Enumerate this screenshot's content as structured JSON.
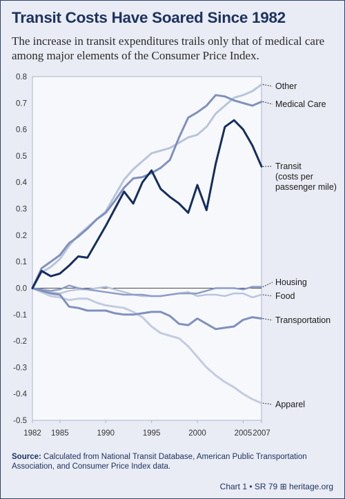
{
  "chart_data": {
    "type": "line",
    "title": "Transit Costs Have Soared Since 1982",
    "subtitle": "The increase in transit expenditures trails only that of medical care among major elements of the Consumer Price Index.",
    "xlabel": "",
    "ylabel": "",
    "xlim": [
      1982,
      2007
    ],
    "ylim": [
      -0.5,
      0.8
    ],
    "x_ticks": [
      "1982",
      "1985",
      "1990",
      "1995",
      "2000",
      "2005",
      "2007"
    ],
    "y_ticks": [
      "0.8",
      "0.7",
      "0.6",
      "0.5",
      "0.4",
      "0.3",
      "0.2",
      "0.1",
      "0.0",
      "-0.1",
      "-0.2",
      "-0.3",
      "-0.4",
      "-0.5"
    ],
    "x": [
      1982,
      1983,
      1984,
      1985,
      1986,
      1987,
      1988,
      1989,
      1990,
      1991,
      1992,
      1993,
      1994,
      1995,
      1996,
      1997,
      1998,
      1999,
      2000,
      2001,
      2002,
      2003,
      2004,
      2005,
      2006,
      2007
    ],
    "series": [
      {
        "name": "Other",
        "color": "#b9c4dc",
        "width": 3,
        "values": [
          0,
          0.06,
          0.08,
          0.11,
          0.16,
          0.2,
          0.23,
          0.26,
          0.29,
          0.35,
          0.41,
          0.45,
          0.48,
          0.51,
          0.52,
          0.53,
          0.55,
          0.57,
          0.58,
          0.61,
          0.66,
          0.69,
          0.72,
          0.73,
          0.745,
          0.77
        ]
      },
      {
        "name": "Medical Care",
        "color": "#7f90bd",
        "width": 3,
        "values": [
          0,
          0.075,
          0.1,
          0.125,
          0.17,
          0.195,
          0.225,
          0.26,
          0.285,
          0.33,
          0.38,
          0.415,
          0.42,
          0.435,
          0.455,
          0.485,
          0.57,
          0.645,
          0.665,
          0.69,
          0.73,
          0.725,
          0.71,
          0.7,
          0.69,
          0.705
        ]
      },
      {
        "name": "Transit (costs per passenger mile)",
        "color": "#142d5e",
        "width": 3,
        "values": [
          0,
          0.065,
          0.045,
          0.055,
          0.085,
          0.12,
          0.115,
          0.175,
          0.235,
          0.3,
          0.365,
          0.32,
          0.4,
          0.445,
          0.375,
          0.345,
          0.32,
          0.285,
          0.39,
          0.295,
          0.47,
          0.61,
          0.635,
          0.6,
          0.54,
          0.46
        ]
      },
      {
        "name": "Housing",
        "color": "#8e9dc6",
        "width": 2.5,
        "values": [
          0,
          -0.005,
          -0.01,
          -0.005,
          0.01,
          0.0,
          -0.005,
          -0.01,
          -0.015,
          -0.02,
          -0.025,
          -0.025,
          -0.025,
          -0.03,
          -0.03,
          -0.025,
          -0.02,
          -0.02,
          -0.02,
          -0.01,
          0.0,
          0.0,
          0.0,
          -0.005,
          0.005,
          0.005
        ]
      },
      {
        "name": "Food",
        "color": "#b9c4dc",
        "width": 2.5,
        "values": [
          0,
          -0.005,
          -0.015,
          -0.02,
          -0.01,
          -0.005,
          -0.005,
          0.0,
          0.005,
          -0.005,
          -0.015,
          -0.025,
          -0.03,
          -0.03,
          -0.03,
          -0.025,
          -0.02,
          -0.015,
          -0.03,
          -0.025,
          -0.025,
          -0.03,
          -0.02,
          -0.02,
          -0.035,
          -0.025
        ]
      },
      {
        "name": "Transportation",
        "color": "#7f90bd",
        "width": 3,
        "values": [
          0,
          -0.01,
          -0.02,
          -0.025,
          -0.07,
          -0.075,
          -0.085,
          -0.085,
          -0.085,
          -0.095,
          -0.1,
          -0.1,
          -0.095,
          -0.09,
          -0.09,
          -0.105,
          -0.135,
          -0.14,
          -0.115,
          -0.135,
          -0.155,
          -0.15,
          -0.145,
          -0.12,
          -0.11,
          -0.115
        ]
      },
      {
        "name": "Apparel",
        "color": "#c2cbe0",
        "width": 3,
        "values": [
          0,
          -0.015,
          -0.03,
          -0.035,
          -0.045,
          -0.04,
          -0.04,
          -0.055,
          -0.065,
          -0.07,
          -0.075,
          -0.09,
          -0.11,
          -0.145,
          -0.17,
          -0.18,
          -0.19,
          -0.22,
          -0.26,
          -0.3,
          -0.33,
          -0.355,
          -0.375,
          -0.4,
          -0.42,
          -0.435
        ]
      }
    ],
    "labels": [
      {
        "series": 0,
        "lines": [
          "Other"
        ]
      },
      {
        "series": 1,
        "lines": [
          "Medical Care"
        ]
      },
      {
        "series": 2,
        "lines": [
          "Transit",
          "(costs per",
          "passenger mile)"
        ]
      },
      {
        "series": 3,
        "lines": [
          "Housing"
        ]
      },
      {
        "series": 4,
        "lines": [
          "Food"
        ]
      },
      {
        "series": 5,
        "lines": [
          "Transportation"
        ]
      },
      {
        "series": 6,
        "lines": [
          "Apparel"
        ]
      }
    ],
    "zero_line": true,
    "legend": "right-side labels"
  },
  "source": {
    "label": "Source:",
    "text": "Calculated from National Transit Database, American Public Transportation Association, and Consumer Price Index data."
  },
  "credit": "Chart 1 • SR 79 ⊞ heritage.org"
}
